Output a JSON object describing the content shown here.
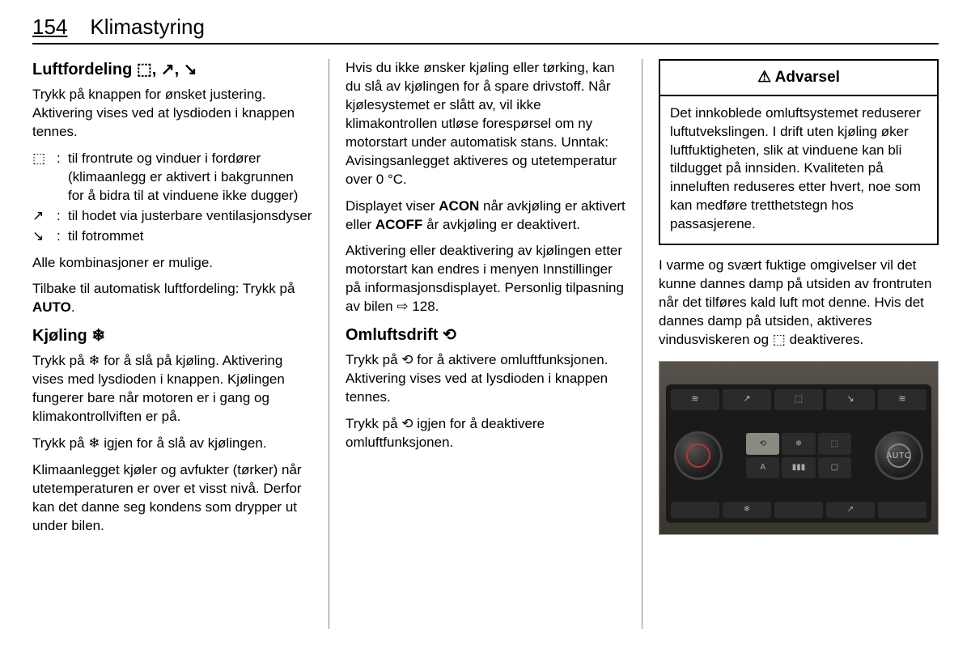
{
  "header": {
    "page_number": "154",
    "chapter": "Klimastyring"
  },
  "col1": {
    "h_air": "Luftfordeling ⬚, ↗, ↘",
    "p_air1": "Trykk på knappen for ønsket juste­ring. Aktivering vises ved at lysdioden i knappen tennes.",
    "defs": [
      {
        "icon": "⬚",
        "text": "til frontrute og vinduer i fordører (klimaanlegg er aktivert i bak­grunnen for å bidra til at vin­duene ikke dugger)"
      },
      {
        "icon": "↗",
        "text": "til hodet via justerbare ventila­sjonsdyser"
      },
      {
        "icon": "↘",
        "text": "til fotrommet"
      }
    ],
    "p_air2": "Alle kombinasjoner er mulige.",
    "p_air3_pre": "Tilbake til automatisk luftfordeling: Trykk på ",
    "p_air3_bold": "AUTO",
    "p_air3_post": ".",
    "h_cool": "Kjøling ❄",
    "p_cool1": "Trykk på ❄ for å slå på kjøling. Akti­vering vises med lysdioden i knap­pen. Kjølingen fungerer bare når mo­toren er i gang og klimakontrollviften er på.",
    "p_cool2": "Trykk på ❄ igjen for å slå av kjølin­gen.",
    "p_cool3": "Klimaanlegget kjøler og avfukter (tør­ker) når utetemperaturen er over et visst nivå. Derfor kan det danne seg kondens som drypper ut under bilen."
  },
  "col2": {
    "p1": "Hvis du ikke ønsker kjøling eller tør­king, kan du slå av kjølingen for å spare drivstoff. Når kjølesystemet er slått av, vil ikke klimakontrollen utløse forespørsel om ny motorstart under automatisk stans. Unntak: Avisings­anlegget aktiveres og utetemperatur over 0 °C.",
    "p2_pre": "Displayet viser ",
    "p2_b1": "ACON",
    "p2_mid": " når avkjøling er aktivert eller ",
    "p2_b2": "ACOFF",
    "p2_post": " år avkjøling er deaktivert.",
    "p3": "Aktivering eller deaktivering av kjølin­gen etter motorstart kan endres i me­nyen Innstillinger på informasjonsdis­playet. Personlig tilpasning av bilen ⇨ 128.",
    "h_rec": "Omluftsdrift ⟲",
    "p_rec1": "Trykk på ⟲ for å aktivere omluft­funksjonen. Aktivering vises ved at lysdioden i knappen tennes.",
    "p_rec2": "Trykk på ⟲ igjen for å deaktivere omluftfunksjonen."
  },
  "col3": {
    "warning_title": "⚠ Advarsel",
    "warning_text": "Det innkoblede omluftsystemet re­duserer luftutvekslingen. I drift uten kjøling øker luftfuktigheten, slik at vinduene kan bli tildugget på innsiden. Kvaliteten på inneluften reduseres etter hvert, noe som kan medføre tretthetstegn hos passasjerene.",
    "p1": "I varme og svært fuktige omgivelser vil det kunne dannes damp på utsiden av frontruten når det tilføres kald luft mot denne. Hvis det dannes damp på utsiden, aktiveres vindusviskeren og ⬚ deaktiveres."
  },
  "climate_panel": {
    "top_icons": [
      "≋",
      "↗",
      "⬚",
      "↘",
      "≋"
    ],
    "center_icons": [
      "⟲",
      "❄",
      "⬚",
      "A",
      "▮▮▮",
      "▢"
    ],
    "auto_label": "AUTO",
    "bottom_labels": [
      "",
      "❄",
      "",
      "↗",
      ""
    ],
    "colors": {
      "bg_gradient_top": "#58524c",
      "bg_gradient_bot": "#3a352f",
      "panel": "#1a1a1a",
      "button": "#2b2b2b",
      "highlight": "#8a8a80",
      "knob_ring": "#b33"
    }
  }
}
